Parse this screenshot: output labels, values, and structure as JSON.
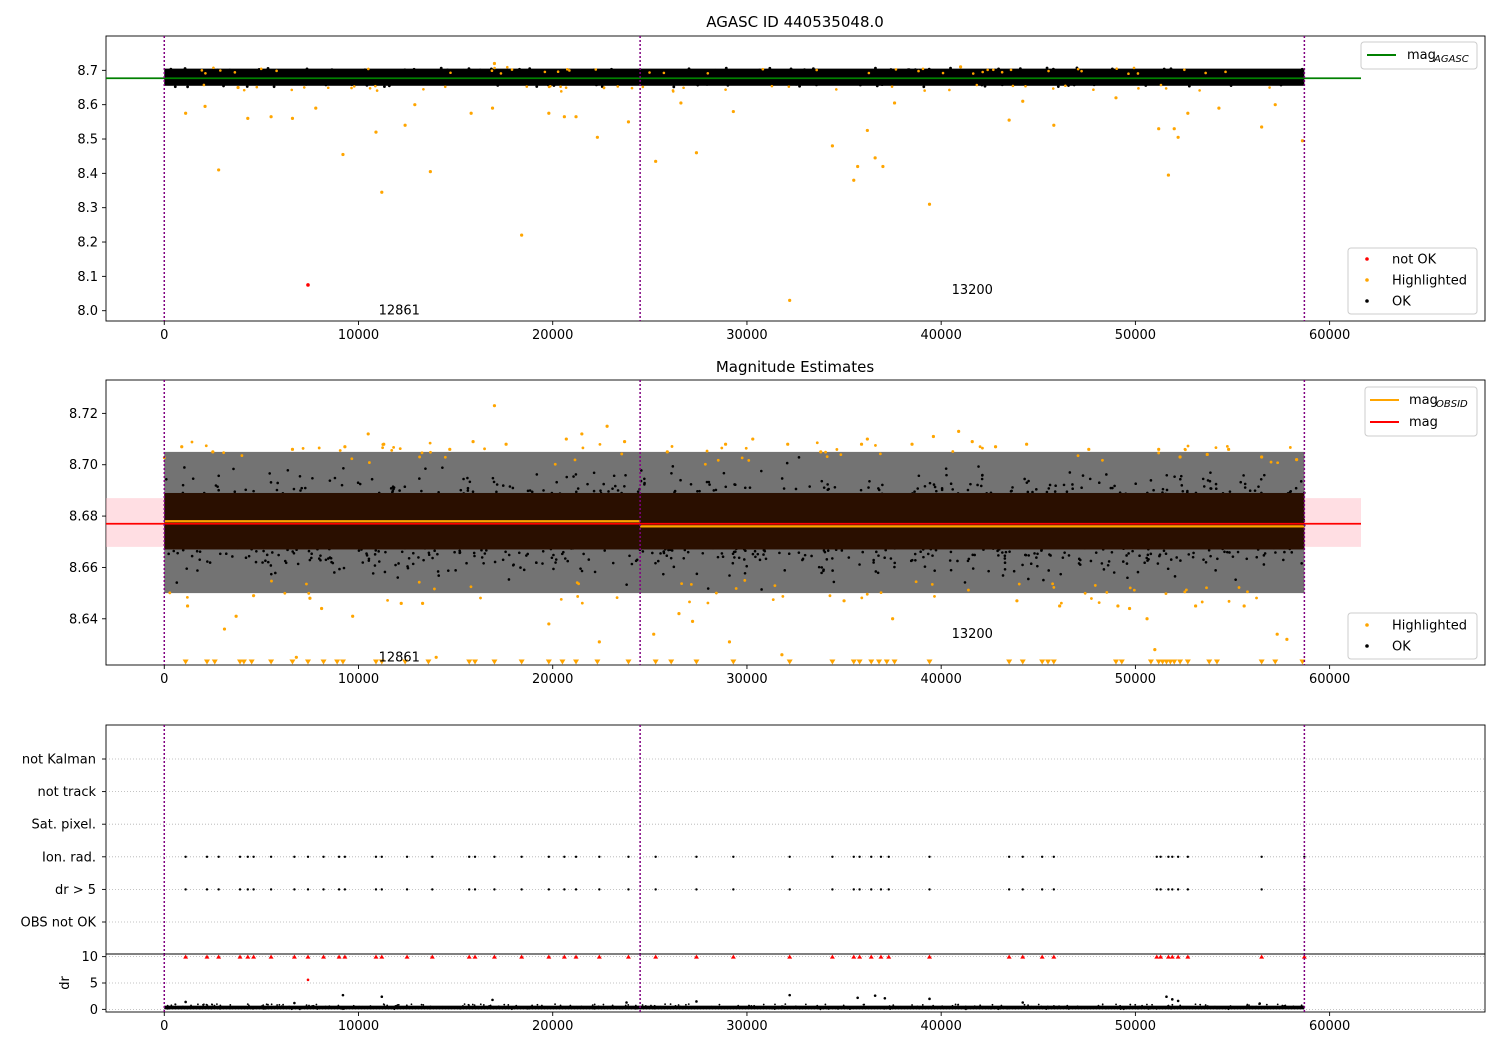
{
  "figure": {
    "title": "AGASC ID 440535048.0",
    "x_ticks": [
      0,
      10000,
      20000,
      30000,
      40000,
      50000,
      60000
    ],
    "x_range": [
      -3000,
      68000
    ],
    "obsid_boundaries": [
      0,
      24500,
      58700
    ],
    "colors": {
      "ok": "#000000",
      "highlighted": "#ffa500",
      "not_ok": "#ff0000",
      "agasc_line": "#008000",
      "mag_line": "#ff0000",
      "obsid_line": "#ffa500",
      "boundary": "#800080",
      "band": "#ffb6c1",
      "grid": "#b0b0b0"
    }
  },
  "chart_data": [
    {
      "type": "scatter",
      "panel": "top",
      "title": "AGASC ID 440535048.0",
      "xlim": [
        -3000,
        68000
      ],
      "ylim": [
        7.97,
        8.8
      ],
      "y_ticks": [
        8.0,
        8.1,
        8.2,
        8.3,
        8.4,
        8.5,
        8.6,
        8.7
      ],
      "ok_band": {
        "x": [
          0,
          58700
        ],
        "y": [
          8.655,
          8.705
        ],
        "color": "#000000"
      },
      "mag_agasc": 8.677,
      "series": [
        {
          "name": "not OK",
          "color": "#ff0000",
          "points": [
            [
              7400,
              8.075
            ]
          ]
        },
        {
          "name": "Highlighted",
          "color": "#ffa500",
          "points": [
            [
              1100,
              8.575
            ],
            [
              2100,
              8.595
            ],
            [
              2800,
              8.41
            ],
            [
              3800,
              8.65
            ],
            [
              4300,
              8.56
            ],
            [
              5500,
              8.565
            ],
            [
              6600,
              8.56
            ],
            [
              7800,
              8.59
            ],
            [
              9200,
              8.455
            ],
            [
              10900,
              8.52
            ],
            [
              11200,
              8.345
            ],
            [
              12400,
              8.54
            ],
            [
              12900,
              8.6
            ],
            [
              13700,
              8.405
            ],
            [
              15800,
              8.575
            ],
            [
              16900,
              8.59
            ],
            [
              18400,
              8.22
            ],
            [
              19800,
              8.575
            ],
            [
              20600,
              8.565
            ],
            [
              21200,
              8.565
            ],
            [
              22300,
              8.505
            ],
            [
              23900,
              8.55
            ],
            [
              25300,
              8.435
            ],
            [
              26600,
              8.605
            ],
            [
              27400,
              8.46
            ],
            [
              29300,
              8.58
            ],
            [
              34400,
              8.48
            ],
            [
              35500,
              8.38
            ],
            [
              35700,
              8.42
            ],
            [
              36200,
              8.525
            ],
            [
              36600,
              8.445
            ],
            [
              37000,
              8.42
            ],
            [
              37600,
              8.605
            ],
            [
              39400,
              8.31
            ],
            [
              43500,
              8.555
            ],
            [
              44200,
              8.61
            ],
            [
              45800,
              8.54
            ],
            [
              49000,
              8.62
            ],
            [
              51200,
              8.53
            ],
            [
              51700,
              8.395
            ],
            [
              52000,
              8.53
            ],
            [
              52200,
              8.505
            ],
            [
              52700,
              8.575
            ],
            [
              54300,
              8.59
            ],
            [
              56500,
              8.535
            ],
            [
              57200,
              8.6
            ],
            [
              58600,
              8.495
            ],
            [
              32200,
              8.03
            ],
            [
              17000,
              8.72
            ],
            [
              41000,
              8.71
            ]
          ]
        },
        {
          "name": "OK",
          "color": "#000000",
          "points": []
        }
      ],
      "obsid_labels": [
        {
          "text": "12861",
          "x": 12100,
          "y": 8.0
        },
        {
          "text": "13200",
          "x": 41600,
          "y": 8.06
        }
      ],
      "legend_upper": [
        {
          "label": "mag",
          "sub": "AGASC",
          "color": "#008000"
        }
      ],
      "legend_lower": [
        {
          "label": "not OK",
          "color": "#ff0000"
        },
        {
          "label": "Highlighted",
          "color": "#ffa500"
        },
        {
          "label": "OK",
          "color": "#000000"
        }
      ]
    },
    {
      "type": "scatter",
      "panel": "middle",
      "title": "Magnitude Estimates",
      "xlim": [
        -3000,
        68000
      ],
      "ylim": [
        8.622,
        8.733
      ],
      "y_ticks": [
        8.64,
        8.66,
        8.68,
        8.7,
        8.72
      ],
      "mag": 8.677,
      "mag_band": [
        8.668,
        8.687
      ],
      "mag_obsid": [
        {
          "x": [
            0,
            24500
          ],
          "y": 8.678
        },
        {
          "x": [
            24500,
            58700
          ],
          "y": 8.676
        }
      ],
      "dark_band": [
        8.667,
        8.689
      ],
      "ok_band": [
        8.65,
        8.705
      ],
      "highlighted_points": [
        [
          900,
          8.707
        ],
        [
          1200,
          8.645
        ],
        [
          2500,
          8.705
        ],
        [
          3100,
          8.636
        ],
        [
          3700,
          8.641
        ],
        [
          4600,
          8.649
        ],
        [
          6600,
          8.706
        ],
        [
          6800,
          8.625
        ],
        [
          7500,
          8.648
        ],
        [
          8100,
          8.644
        ],
        [
          9300,
          8.707
        ],
        [
          9700,
          8.641
        ],
        [
          10500,
          8.712
        ],
        [
          11300,
          8.708
        ],
        [
          12200,
          8.646
        ],
        [
          13300,
          8.646
        ],
        [
          14000,
          8.625
        ],
        [
          14700,
          8.706
        ],
        [
          15900,
          8.709
        ],
        [
          17000,
          8.723
        ],
        [
          17600,
          8.708
        ],
        [
          19800,
          8.638
        ],
        [
          20700,
          8.71
        ],
        [
          21500,
          8.712
        ],
        [
          22400,
          8.631
        ],
        [
          22800,
          8.715
        ],
        [
          23700,
          8.709
        ],
        [
          25200,
          8.634
        ],
        [
          25900,
          8.705
        ],
        [
          26500,
          8.642
        ],
        [
          27200,
          8.639
        ],
        [
          28900,
          8.708
        ],
        [
          29100,
          8.631
        ],
        [
          30300,
          8.71
        ],
        [
          31800,
          8.626
        ],
        [
          32100,
          8.708
        ],
        [
          33800,
          8.705
        ],
        [
          35000,
          8.647
        ],
        [
          35900,
          8.708
        ],
        [
          36200,
          8.71
        ],
        [
          37500,
          8.64
        ],
        [
          38500,
          8.708
        ],
        [
          39600,
          8.711
        ],
        [
          40900,
          8.713
        ],
        [
          41600,
          8.709
        ],
        [
          42800,
          8.707
        ],
        [
          43900,
          8.647
        ],
        [
          44400,
          8.708
        ],
        [
          46100,
          8.645
        ],
        [
          47600,
          8.706
        ],
        [
          49100,
          8.645
        ],
        [
          49700,
          8.644
        ],
        [
          50600,
          8.64
        ],
        [
          51000,
          8.628
        ],
        [
          51200,
          8.706
        ],
        [
          52300,
          8.703
        ],
        [
          53100,
          8.645
        ],
        [
          53700,
          8.704
        ],
        [
          54800,
          8.706
        ],
        [
          55600,
          8.645
        ],
        [
          56500,
          8.703
        ],
        [
          57300,
          8.634
        ],
        [
          57800,
          8.632
        ],
        [
          58300,
          8.702
        ]
      ],
      "clipped_x": [
        1100,
        2200,
        2600,
        3900,
        4100,
        4500,
        5500,
        6600,
        7400,
        8200,
        8900,
        9200,
        10900,
        11200,
        12400,
        13600,
        15700,
        16000,
        17000,
        18400,
        19800,
        20500,
        21200,
        22300,
        23900,
        25300,
        26100,
        27400,
        29300,
        32200,
        34400,
        35500,
        35800,
        36400,
        36800,
        37200,
        37600,
        39400,
        43500,
        44200,
        45200,
        45500,
        45800,
        49000,
        49300,
        50800,
        51200,
        51400,
        51600,
        51800,
        52000,
        52300,
        52700,
        53800,
        54200,
        56500,
        57200,
        58600
      ],
      "obsid_labels": [
        {
          "text": "12861",
          "x": 12100,
          "y": 8.625
        },
        {
          "text": "13200",
          "x": 41600,
          "y": 8.634
        }
      ],
      "legend_upper": [
        {
          "label": "mag",
          "sub": "OBSID",
          "color": "#ffa500"
        },
        {
          "label": "mag",
          "sub": "",
          "color": "#ff0000"
        }
      ],
      "legend_lower": [
        {
          "label": "Highlighted",
          "color": "#ffa500"
        },
        {
          "label": "OK",
          "color": "#000000"
        }
      ]
    },
    {
      "type": "scatter",
      "panel": "flags",
      "xlim": [
        -3000,
        68000
      ],
      "categories": [
        "not Kalman",
        "not track",
        "Sat. pixel.",
        "Ion. rad.",
        "dr > 5",
        "OBS not OK"
      ],
      "flag_x": [
        1100,
        2200,
        2800,
        3900,
        4300,
        4600,
        5500,
        6700,
        7400,
        8200,
        9000,
        9300,
        10900,
        11200,
        12500,
        13800,
        15700,
        16000,
        17000,
        18400,
        19800,
        20600,
        21200,
        22400,
        23900,
        25300,
        27400,
        29300,
        32200,
        34400,
        35500,
        35800,
        36400,
        36900,
        37300,
        39400,
        43500,
        44200,
        45200,
        45800,
        51100,
        51300,
        51700,
        51900,
        52200,
        52700,
        56500,
        58700
      ],
      "flag_rows": [
        "Ion. rad.",
        "dr > 5"
      ]
    },
    {
      "type": "scatter",
      "panel": "dr",
      "ylabel": "dr",
      "xlim": [
        -3000,
        68000
      ],
      "ylim": [
        -0.5,
        10.5
      ],
      "y_ticks": [
        0,
        5,
        10
      ],
      "clipped_x": [
        1100,
        2200,
        2800,
        3900,
        4300,
        4600,
        5500,
        6700,
        7400,
        8200,
        9000,
        9300,
        10900,
        11200,
        12500,
        13800,
        15700,
        16000,
        17000,
        18400,
        19800,
        20600,
        21200,
        22400,
        23900,
        25300,
        27400,
        29300,
        32200,
        34400,
        35500,
        35800,
        36400,
        36900,
        37300,
        39400,
        43500,
        44200,
        45200,
        45800,
        51100,
        51300,
        51700,
        51900,
        52200,
        52700,
        56500,
        58700
      ],
      "outliers": [
        [
          7400,
          5.6,
          "#ff0000"
        ],
        [
          9200,
          2.7,
          "#000000"
        ],
        [
          11200,
          2.4,
          "#000000"
        ],
        [
          32200,
          2.7,
          "#000000"
        ],
        [
          35700,
          2.2,
          "#000000"
        ],
        [
          36600,
          2.6,
          "#000000"
        ],
        [
          37100,
          2.1,
          "#000000"
        ],
        [
          39400,
          2.0,
          "#000000"
        ],
        [
          51600,
          2.4,
          "#000000"
        ],
        [
          51900,
          1.9,
          "#000000"
        ],
        [
          52200,
          1.6,
          "#000000"
        ],
        [
          16900,
          1.8,
          "#000000"
        ],
        [
          27400,
          1.5,
          "#000000"
        ],
        [
          1100,
          1.4,
          "#000000"
        ],
        [
          6700,
          1.2,
          "#000000"
        ],
        [
          23800,
          1.3,
          "#000000"
        ],
        [
          44200,
          1.3,
          "#000000"
        ],
        [
          56400,
          1.1,
          "#000000"
        ]
      ]
    }
  ]
}
